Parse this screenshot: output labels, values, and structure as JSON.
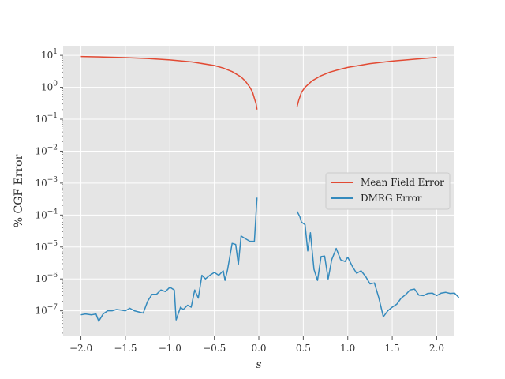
{
  "chart_data": {
    "type": "line",
    "title": "",
    "xlabel": "s",
    "ylabel": "% CGF Error",
    "xlim": [
      -2.2,
      2.2
    ],
    "ylim_log10": [
      -7.8,
      1.3
    ],
    "yscale": "log",
    "grid": true,
    "legend_position": "center-right",
    "x_ticks": [
      -2.0,
      -1.5,
      -1.0,
      -0.5,
      0.0,
      0.5,
      1.0,
      1.5,
      2.0
    ],
    "x_tick_labels": [
      "−2.0",
      "−1.5",
      "−1.0",
      "−0.5",
      "0.0",
      "0.5",
      "1.0",
      "1.5",
      "2.0"
    ],
    "y_tick_exponents": [
      1,
      0,
      -1,
      -2,
      -3,
      -4,
      -5,
      -6,
      -7
    ],
    "y_tick_base": "10",
    "series": [
      {
        "name": "Mean Field Error",
        "color": "#e24a33",
        "segments": [
          [
            [
              -2.0,
              9.2
            ],
            [
              -1.75,
              8.9
            ],
            [
              -1.5,
              8.5
            ],
            [
              -1.25,
              8.0
            ],
            [
              -1.0,
              7.2
            ],
            [
              -0.75,
              6.2
            ],
            [
              -0.5,
              4.8
            ],
            [
              -0.4,
              4.0
            ],
            [
              -0.3,
              3.1
            ],
            [
              -0.2,
              2.1
            ],
            [
              -0.15,
              1.55
            ],
            [
              -0.1,
              1.0
            ],
            [
              -0.07,
              0.7
            ],
            [
              -0.05,
              0.45
            ],
            [
              -0.03,
              0.3
            ],
            [
              -0.02,
              0.2
            ]
          ],
          [
            [
              0.43,
              0.25
            ],
            [
              0.45,
              0.4
            ],
            [
              0.48,
              0.7
            ],
            [
              0.52,
              1.0
            ],
            [
              0.6,
              1.6
            ],
            [
              0.7,
              2.3
            ],
            [
              0.8,
              3.0
            ],
            [
              0.9,
              3.6
            ],
            [
              1.0,
              4.2
            ],
            [
              1.25,
              5.5
            ],
            [
              1.5,
              6.6
            ],
            [
              1.75,
              7.6
            ],
            [
              2.0,
              8.6
            ]
          ]
        ]
      },
      {
        "name": "DMRG Error",
        "color": "#348abd",
        "segments": [
          [
            [
              -2.0,
              7.5e-08
            ],
            [
              -1.95,
              8e-08
            ],
            [
              -1.88,
              7.5e-08
            ],
            [
              -1.83,
              8e-08
            ],
            [
              -1.8,
              4.7e-08
            ],
            [
              -1.75,
              8e-08
            ],
            [
              -1.7,
              1e-07
            ],
            [
              -1.65,
              1e-07
            ],
            [
              -1.6,
              1.1e-07
            ],
            [
              -1.55,
              1.05e-07
            ],
            [
              -1.5,
              1e-07
            ],
            [
              -1.45,
              1.2e-07
            ],
            [
              -1.4,
              1e-07
            ],
            [
              -1.3,
              8.5e-08
            ],
            [
              -1.25,
              2e-07
            ],
            [
              -1.2,
              3.3e-07
            ],
            [
              -1.15,
              3.3e-07
            ],
            [
              -1.1,
              4.5e-07
            ],
            [
              -1.05,
              4e-07
            ],
            [
              -1.0,
              5.5e-07
            ],
            [
              -0.95,
              4.5e-07
            ],
            [
              -0.93,
              5.2e-08
            ],
            [
              -0.88,
              1.3e-07
            ],
            [
              -0.85,
              1.1e-07
            ],
            [
              -0.8,
              1.5e-07
            ],
            [
              -0.76,
              1.3e-07
            ],
            [
              -0.72,
              4.5e-07
            ],
            [
              -0.68,
              2.5e-07
            ],
            [
              -0.64,
              1.3e-06
            ],
            [
              -0.6,
              1e-06
            ],
            [
              -0.55,
              1.3e-06
            ],
            [
              -0.5,
              1.6e-06
            ],
            [
              -0.45,
              1.3e-06
            ],
            [
              -0.4,
              1.8e-06
            ],
            [
              -0.38,
              9e-07
            ],
            [
              -0.35,
              2e-06
            ],
            [
              -0.3,
              1.3e-05
            ],
            [
              -0.26,
              1.2e-05
            ],
            [
              -0.23,
              2.8e-06
            ],
            [
              -0.2,
              2.2e-05
            ],
            [
              -0.15,
              1.8e-05
            ],
            [
              -0.1,
              1.5e-05
            ],
            [
              -0.05,
              1.5e-05
            ],
            [
              -0.02,
              0.00035
            ]
          ],
          [
            [
              0.43,
              0.00013
            ],
            [
              0.46,
              9e-05
            ],
            [
              0.48,
              6e-05
            ],
            [
              0.52,
              5e-05
            ],
            [
              0.55,
              7.5e-06
            ],
            [
              0.58,
              2.8e-05
            ],
            [
              0.62,
              2e-06
            ],
            [
              0.66,
              9e-07
            ],
            [
              0.7,
              5e-06
            ],
            [
              0.74,
              5.2e-06
            ],
            [
              0.78,
              1e-06
            ],
            [
              0.82,
              4e-06
            ],
            [
              0.87,
              9e-06
            ],
            [
              0.92,
              4e-06
            ],
            [
              0.97,
              3.5e-06
            ],
            [
              1.0,
              4.8e-06
            ],
            [
              1.05,
              2.5e-06
            ],
            [
              1.1,
              1.5e-06
            ],
            [
              1.15,
              1.8e-06
            ],
            [
              1.2,
              1.2e-06
            ],
            [
              1.25,
              7e-07
            ],
            [
              1.3,
              7.5e-07
            ],
            [
              1.35,
              2.5e-07
            ],
            [
              1.4,
              6.5e-08
            ],
            [
              1.45,
              1e-07
            ],
            [
              1.5,
              1.3e-07
            ],
            [
              1.55,
              1.6e-07
            ],
            [
              1.6,
              2.5e-07
            ],
            [
              1.65,
              3.2e-07
            ],
            [
              1.7,
              4.5e-07
            ],
            [
              1.75,
              4.8e-07
            ],
            [
              1.8,
              3.1e-07
            ],
            [
              1.85,
              3e-07
            ],
            [
              1.9,
              3.5e-07
            ],
            [
              1.95,
              3.6e-07
            ],
            [
              2.0,
              3e-07
            ],
            [
              2.05,
              3.6e-07
            ],
            [
              2.1,
              3.8e-07
            ],
            [
              2.15,
              3.5e-07
            ],
            [
              2.2,
              3.6e-07
            ],
            [
              2.25,
              2.6e-07
            ]
          ]
        ]
      }
    ]
  }
}
